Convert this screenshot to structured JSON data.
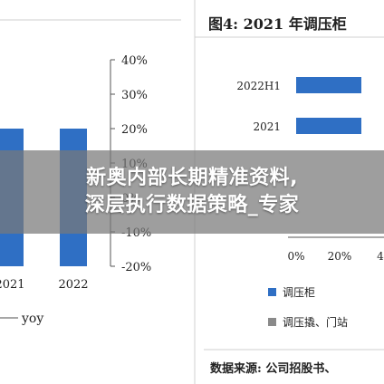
{
  "overlay": {
    "line1": "新奥内部长期精准资料,",
    "line2": "深层执行数据策略_专家"
  },
  "colors": {
    "bar": "#2f6fc4",
    "grey": "#8a8a8a",
    "text": "#333333"
  },
  "chart_data": [
    {
      "type": "bar",
      "categories": [
        "2021",
        "2022"
      ],
      "series": [
        {
          "values": [
            20,
            20
          ]
        }
      ],
      "ylim": [
        -20,
        40
      ],
      "y_ticks": [
        "40%",
        "30%",
        "20%",
        "10%",
        "0%",
        "-10%",
        "-20%"
      ],
      "legend": [
        "yoy"
      ],
      "grid": false
    },
    {
      "type": "bar",
      "orientation": "horizontal",
      "title": "图4:  2021 年调压柜",
      "categories": [
        "2022H1",
        "2021"
      ],
      "series": [
        {
          "name": "调压柜",
          "values": [
            30,
            30
          ]
        }
      ],
      "x_ticks": [
        "0%",
        "20%",
        "4"
      ],
      "legend": [
        "调压柜",
        "调压撬、门站"
      ],
      "source": "数据来源:  公司招股书、"
    }
  ]
}
